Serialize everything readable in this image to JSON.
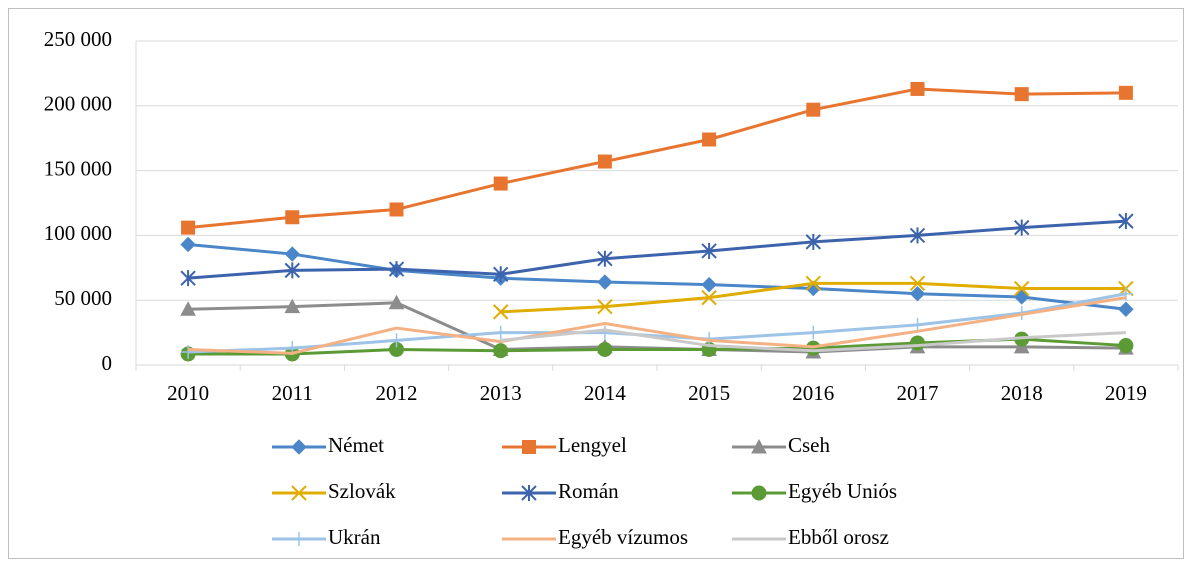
{
  "chart_data": {
    "type": "line",
    "categories": [
      "2010",
      "2011",
      "2012",
      "2013",
      "2014",
      "2015",
      "2016",
      "2017",
      "2018",
      "2019"
    ],
    "series": [
      {
        "name": "Német",
        "color": "#4a86c8",
        "marker": "diamond",
        "values": [
          93000,
          85600,
          73000,
          67000,
          64000,
          62000,
          59000,
          55000,
          52500,
          43000
        ]
      },
      {
        "name": "Lengyel",
        "color": "#e8752f",
        "marker": "square",
        "values": [
          106000,
          114000,
          120000,
          140000,
          157000,
          174000,
          197000,
          213000,
          209000,
          210000
        ]
      },
      {
        "name": "Cseh",
        "color": "#8c8c8c",
        "marker": "triangle",
        "values": [
          43000,
          45000,
          48000,
          12000,
          14000,
          12000,
          10000,
          14000,
          14000,
          13000
        ]
      },
      {
        "name": "Szlovák",
        "color": "#e0ac00",
        "marker": "x",
        "values": [
          null,
          null,
          null,
          41000,
          45000,
          52000,
          63000,
          63000,
          59000,
          59000
        ]
      },
      {
        "name": "Román",
        "color": "#3d63ad",
        "marker": "star",
        "values": [
          67000,
          73000,
          74000,
          70000,
          82000,
          88000,
          95000,
          100000,
          106000,
          111000
        ]
      },
      {
        "name": "Egyéb Uniós",
        "color": "#5b9a35",
        "marker": "circle",
        "values": [
          8500,
          8500,
          12000,
          11000,
          12000,
          12000,
          13000,
          17000,
          20000,
          15000
        ]
      },
      {
        "name": "Ukrán",
        "color": "#9dc3e6",
        "marker": "plus",
        "values": [
          10000,
          13000,
          19000,
          25000,
          25000,
          20000,
          25000,
          31000,
          40000,
          55000
        ]
      },
      {
        "name": "Egyéb vízumos",
        "color": "#f4b183",
        "marker": "none",
        "values": [
          12000,
          9000,
          28500,
          18000,
          32000,
          19000,
          14000,
          26000,
          39000,
          52000
        ]
      },
      {
        "name": "Ebből orosz",
        "color": "#c9c9c9",
        "marker": "none",
        "values": [
          null,
          null,
          null,
          19000,
          27000,
          15000,
          11000,
          15000,
          21000,
          25000
        ]
      }
    ],
    "ylim": [
      0,
      250000
    ],
    "yticks": [
      0,
      {
        "value": 50000,
        "label": "50 000"
      },
      {
        "value": 100000,
        "label": "100 000"
      },
      {
        "value": 150000,
        "label": "150 000"
      },
      {
        "value": 200000,
        "label": "200 000"
      },
      {
        "value": 250000,
        "label": "250 000"
      }
    ],
    "grid": true
  }
}
